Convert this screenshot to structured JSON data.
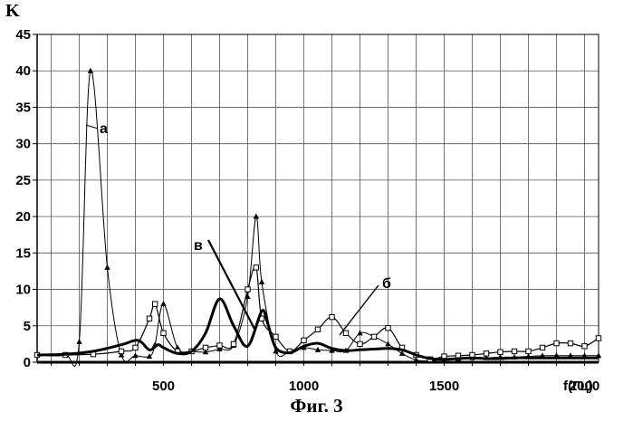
{
  "caption": "Фиг. 3",
  "chart_data": {
    "type": "line",
    "ylabel": "K",
    "xlabel": "f(Гц)",
    "xlim": [
      50,
      2050
    ],
    "ylim": [
      0,
      45
    ],
    "y_ticks": [
      0,
      5,
      10,
      15,
      20,
      25,
      30,
      35,
      40,
      45
    ],
    "x_tick_labels": [
      {
        "x": 500,
        "label": "500"
      },
      {
        "x": 1000,
        "label": "1000"
      },
      {
        "x": 1500,
        "label": "1500"
      },
      {
        "x": 2000,
        "label": "2000"
      }
    ],
    "grid": true,
    "series": [
      {
        "name": "а",
        "marker": "triangle",
        "stroke": "#000000",
        "x": [
          50,
          150,
          200,
          240,
          300,
          350,
          400,
          450,
          470,
          500,
          550,
          600,
          650,
          700,
          750,
          800,
          830,
          850,
          900,
          950,
          1000,
          1050,
          1100,
          1150,
          1200,
          1250,
          1300,
          1350,
          1400,
          1450,
          1500,
          1550,
          1600,
          1650,
          1700,
          1750,
          1800,
          1850,
          1900,
          1950,
          2000,
          2050
        ],
        "y": [
          1,
          1,
          2.8,
          40,
          13,
          1,
          0.9,
          0.8,
          2.4,
          8,
          2,
          1.5,
          1.4,
          1.8,
          2.3,
          9,
          20,
          11,
          1.5,
          1.5,
          2,
          1.7,
          1.6,
          1.6,
          4,
          3.5,
          2.5,
          1.2,
          0.3,
          0.2,
          0.4,
          0.5,
          0.6,
          0.6,
          0.7,
          0.7,
          0.8,
          0.9,
          0.9,
          0.9,
          0.9,
          0.9
        ]
      },
      {
        "name": "б",
        "marker": "square",
        "stroke": "#000000",
        "x": [
          50,
          150,
          250,
          350,
          400,
          450,
          470,
          500,
          550,
          600,
          650,
          700,
          750,
          800,
          830,
          850,
          900,
          950,
          1000,
          1050,
          1100,
          1150,
          1200,
          1250,
          1300,
          1350,
          1400,
          1450,
          1500,
          1550,
          1600,
          1650,
          1700,
          1750,
          1800,
          1850,
          1900,
          1950,
          2000,
          2050
        ],
        "y": [
          1,
          1,
          1.1,
          1.5,
          2,
          6,
          8,
          4,
          1.5,
          1.5,
          2,
          2.3,
          2.5,
          10,
          13,
          6,
          3.5,
          1.5,
          3,
          4.5,
          6.2,
          4,
          2.5,
          3.5,
          4.7,
          2,
          1,
          0.4,
          0.8,
          0.9,
          1,
          1.2,
          1.4,
          1.5,
          1.5,
          2,
          2.6,
          2.6,
          2.2,
          3.3
        ]
      },
      {
        "name": "в",
        "marker": "none",
        "stroke": "#000000",
        "x": [
          50,
          150,
          250,
          350,
          410,
          450,
          480,
          500,
          550,
          600,
          650,
          700,
          750,
          800,
          850,
          870,
          900,
          950,
          1000,
          1050,
          1100,
          1150,
          1200,
          1250,
          1300,
          1350,
          1400,
          1450,
          1500,
          1550,
          1600,
          1650,
          1700,
          1750,
          1800,
          1850,
          1900,
          1950,
          2000,
          2050
        ],
        "y": [
          1,
          1.1,
          1.5,
          2.4,
          3,
          1.7,
          2.4,
          2,
          1.2,
          1.5,
          4,
          8.7,
          5,
          2.2,
          7,
          5.5,
          2,
          1.3,
          2.2,
          2.6,
          1.9,
          1.6,
          1.7,
          1.8,
          1.9,
          1.7,
          1,
          0.5,
          0.4,
          0.5,
          0.6,
          0.5,
          0.5,
          0.6,
          0.6,
          0.6,
          0.6,
          0.6,
          0.6,
          0.6
        ]
      }
    ]
  }
}
